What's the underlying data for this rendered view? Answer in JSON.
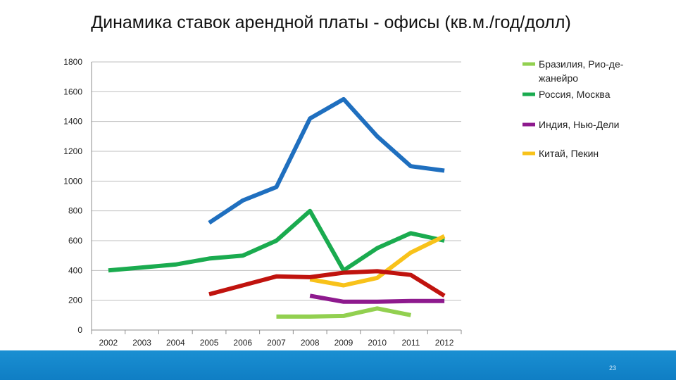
{
  "slide": {
    "page_number": "23",
    "footer_color": "#1485ca"
  },
  "chart_data": {
    "type": "line",
    "title": "Динамика ставок арендной платы - офисы (кв.м./год/долл)",
    "xlabel": "",
    "ylabel": "",
    "categories": [
      "2002",
      "2003",
      "2004",
      "2005",
      "2006",
      "2007",
      "2008",
      "2009",
      "2010",
      "2011",
      "2012"
    ],
    "ylim": [
      0,
      1800
    ],
    "yticks": [
      0,
      200,
      400,
      600,
      800,
      1000,
      1200,
      1400,
      1600,
      1800
    ],
    "grid": true,
    "legend_position": "right",
    "series": [
      {
        "name": "Бразилия, Рио-де-жанейро",
        "legend_lines": [
          "Бразилия, Рио-де-",
          "жанейро"
        ],
        "color": "#92d050",
        "values": [
          null,
          null,
          null,
          null,
          null,
          90,
          90,
          95,
          145,
          100,
          null
        ]
      },
      {
        "name": "Россия, Москва",
        "legend_lines": [
          "Россия, Москва"
        ],
        "color": "#1aab4f",
        "values": [
          400,
          420,
          440,
          480,
          500,
          600,
          800,
          400,
          550,
          650,
          600
        ]
      },
      {
        "name": "Индия, Нью-Дели",
        "legend_lines": [
          "Индия, Нью-Дели"
        ],
        "color": "#8e1a8e",
        "values": [
          null,
          null,
          null,
          null,
          null,
          null,
          230,
          190,
          190,
          195,
          195
        ]
      },
      {
        "name": "Китай, Пекин",
        "legend_lines": [
          "Китай, Пекин"
        ],
        "color": "#f8c21a",
        "values": [
          null,
          null,
          null,
          null,
          null,
          null,
          340,
          300,
          350,
          520,
          630
        ]
      },
      {
        "name": "",
        "legend_lines": [],
        "color": "#1f6fbf",
        "values": [
          null,
          null,
          null,
          720,
          870,
          960,
          1420,
          1550,
          1300,
          1100,
          1070
        ]
      },
      {
        "name": "",
        "legend_lines": [],
        "color": "#c0130e",
        "values": [
          null,
          null,
          null,
          240,
          300,
          360,
          355,
          385,
          395,
          370,
          230
        ]
      }
    ]
  }
}
